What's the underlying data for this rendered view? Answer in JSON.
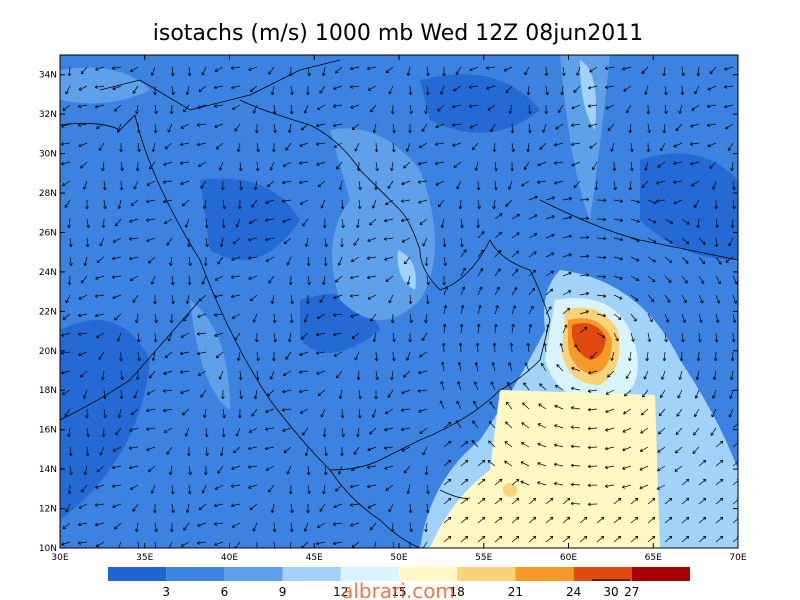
{
  "title": "isotachs (m/s) 1000 mb Wed 12Z 08jun2011",
  "map": {
    "lonlim": [
      30,
      70
    ],
    "latlim": [
      10,
      35
    ],
    "lon_ticks": [
      {
        "value": 30,
        "label": "30E"
      },
      {
        "value": 35,
        "label": "35E"
      },
      {
        "value": 40,
        "label": "40E"
      },
      {
        "value": 45,
        "label": "45E"
      },
      {
        "value": 50,
        "label": "50E"
      },
      {
        "value": 55,
        "label": "55E"
      },
      {
        "value": 60,
        "label": "60E"
      },
      {
        "value": 65,
        "label": "65E"
      },
      {
        "value": 70,
        "label": "70E"
      }
    ],
    "lat_ticks": [
      {
        "value": 10,
        "label": "10N"
      },
      {
        "value": 12,
        "label": "12N"
      },
      {
        "value": 14,
        "label": "14N"
      },
      {
        "value": 16,
        "label": "16N"
      },
      {
        "value": 18,
        "label": "18N"
      },
      {
        "value": 20,
        "label": "20N"
      },
      {
        "value": 22,
        "label": "22N"
      },
      {
        "value": 24,
        "label": "24N"
      },
      {
        "value": 26,
        "label": "26N"
      },
      {
        "value": 28,
        "label": "28N"
      },
      {
        "value": 30,
        "label": "30N"
      },
      {
        "value": 32,
        "label": "32N"
      },
      {
        "value": 34,
        "label": "34N"
      }
    ]
  },
  "colorbar": {
    "levels": [
      3,
      6,
      9,
      12,
      15,
      18,
      21,
      24,
      27
    ],
    "colors": [
      "#1e64d2",
      "#3c82e1",
      "#5fa0eb",
      "#a0d2fa",
      "#d8f4ff",
      "#fff8c4",
      "#fad278",
      "#f59a28",
      "#e04a10",
      "#a80000"
    ]
  },
  "vector_reference": 30,
  "watermark": "albrari.com"
}
